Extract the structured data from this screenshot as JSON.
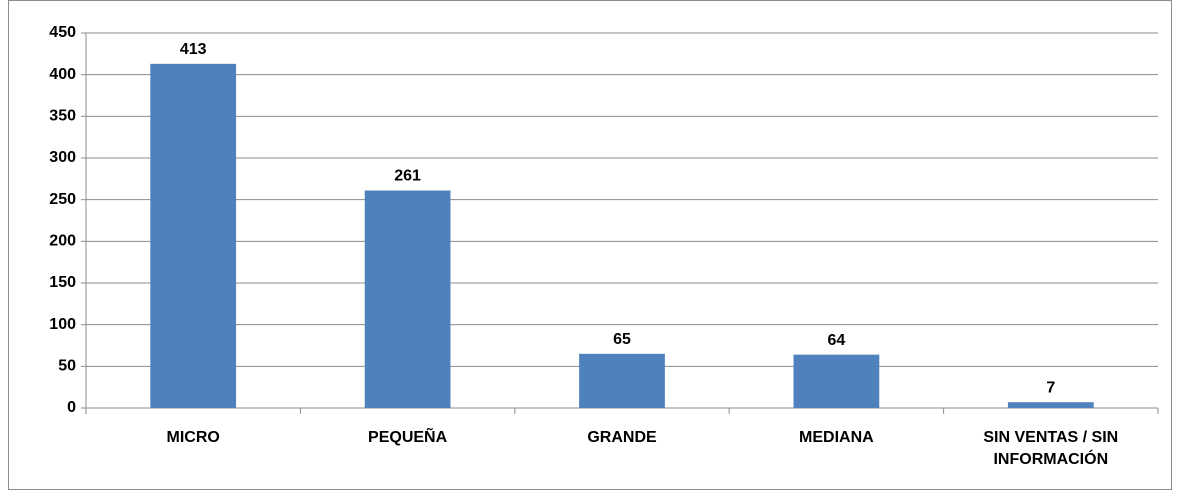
{
  "chart_data": {
    "type": "bar",
    "categories": [
      "MICRO",
      "PEQUEÑA",
      "GRANDE",
      "MEDIANA",
      "SIN VENTAS / SIN INFORMACIÓN"
    ],
    "values": [
      413,
      261,
      65,
      64,
      7
    ],
    "color": "#4f81bd",
    "ylim": [
      0,
      450
    ],
    "yticks": [
      0,
      50,
      100,
      150,
      200,
      250,
      300,
      350,
      400,
      450
    ],
    "grid": true
  }
}
